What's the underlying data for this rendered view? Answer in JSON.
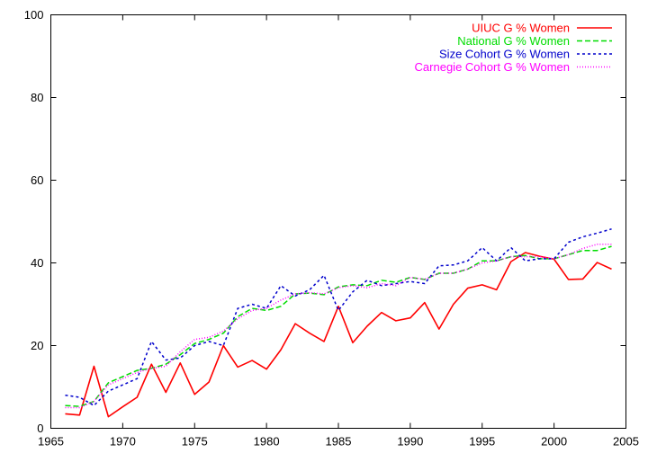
{
  "chart_data": {
    "type": "line",
    "title": "",
    "xlabel": "",
    "ylabel": "",
    "xlim": [
      1965,
      2005
    ],
    "ylim": [
      0,
      100
    ],
    "xticks": [
      1965,
      1970,
      1975,
      1980,
      1985,
      1990,
      1995,
      2000,
      2005
    ],
    "yticks": [
      0,
      20,
      40,
      60,
      80,
      100
    ],
    "grid": false,
    "legend_position": "top-right",
    "x": [
      1966,
      1967,
      1968,
      1969,
      1970,
      1971,
      1972,
      1973,
      1974,
      1975,
      1976,
      1977,
      1978,
      1979,
      1980,
      1981,
      1982,
      1983,
      1984,
      1985,
      1986,
      1987,
      1988,
      1989,
      1990,
      1991,
      1992,
      1993,
      1994,
      1995,
      1996,
      1997,
      1998,
      1999,
      2000,
      2001,
      2002,
      2003,
      2004
    ],
    "series": [
      {
        "name": "UIUC G % Women",
        "color": "#ff0000",
        "dash": "solid",
        "values": [
          3.5,
          3.2,
          15.0,
          2.8,
          5.2,
          7.5,
          15.5,
          8.7,
          15.8,
          8.2,
          11.2,
          20.0,
          14.8,
          16.4,
          14.3,
          19.0,
          25.3,
          23.0,
          21.0,
          29.5,
          20.7,
          24.7,
          28.0,
          26.0,
          26.7,
          30.4,
          24.0,
          30.0,
          33.9,
          34.7,
          33.5,
          40.3,
          42.5,
          41.6,
          40.9,
          36.0,
          36.1,
          40.1,
          38.5
        ]
      },
      {
        "name": "National G % Women",
        "color": "#00dd00",
        "dash": "6,3",
        "values": [
          5.5,
          5.3,
          6.5,
          11.0,
          12.5,
          14.0,
          14.5,
          15.5,
          17.8,
          20.5,
          21.5,
          23.0,
          27.0,
          29.0,
          28.5,
          29.5,
          32.5,
          32.7,
          32.3,
          34.2,
          34.7,
          34.5,
          35.8,
          35.3,
          36.5,
          36.0,
          37.5,
          37.5,
          38.5,
          40.5,
          40.5,
          41.5,
          41.8,
          41.0,
          41.0,
          42.0,
          43.0,
          43.0,
          44.0
        ]
      },
      {
        "name": "Size Cohort G % Women",
        "color": "#0000cc",
        "dash": "3,3",
        "values": [
          8.0,
          7.5,
          5.5,
          9.0,
          10.5,
          12.0,
          21.0,
          16.5,
          17.0,
          20.0,
          21.0,
          20.0,
          29.0,
          30.0,
          29.0,
          34.5,
          32.0,
          33.5,
          37.0,
          28.5,
          33.0,
          35.8,
          34.5,
          35.0,
          35.5,
          35.0,
          39.3,
          39.5,
          40.5,
          43.7,
          40.5,
          43.7,
          40.5,
          41.0,
          41.0,
          45.0,
          46.3,
          47.2,
          48.2
        ]
      },
      {
        "name": "Carnegie Cohort G % Women",
        "color": "#ff00ff",
        "dash": "1,2",
        "values": [
          5.0,
          5.0,
          6.5,
          10.5,
          12.0,
          13.5,
          14.5,
          15.0,
          18.5,
          21.5,
          22.0,
          23.5,
          26.5,
          28.5,
          29.0,
          31.0,
          32.5,
          32.8,
          32.5,
          34.0,
          34.5,
          34.0,
          35.0,
          34.5,
          36.5,
          36.0,
          37.5,
          37.5,
          38.5,
          40.0,
          40.5,
          41.5,
          41.5,
          41.5,
          41.0,
          42.0,
          43.5,
          44.5,
          44.5
        ]
      }
    ]
  }
}
